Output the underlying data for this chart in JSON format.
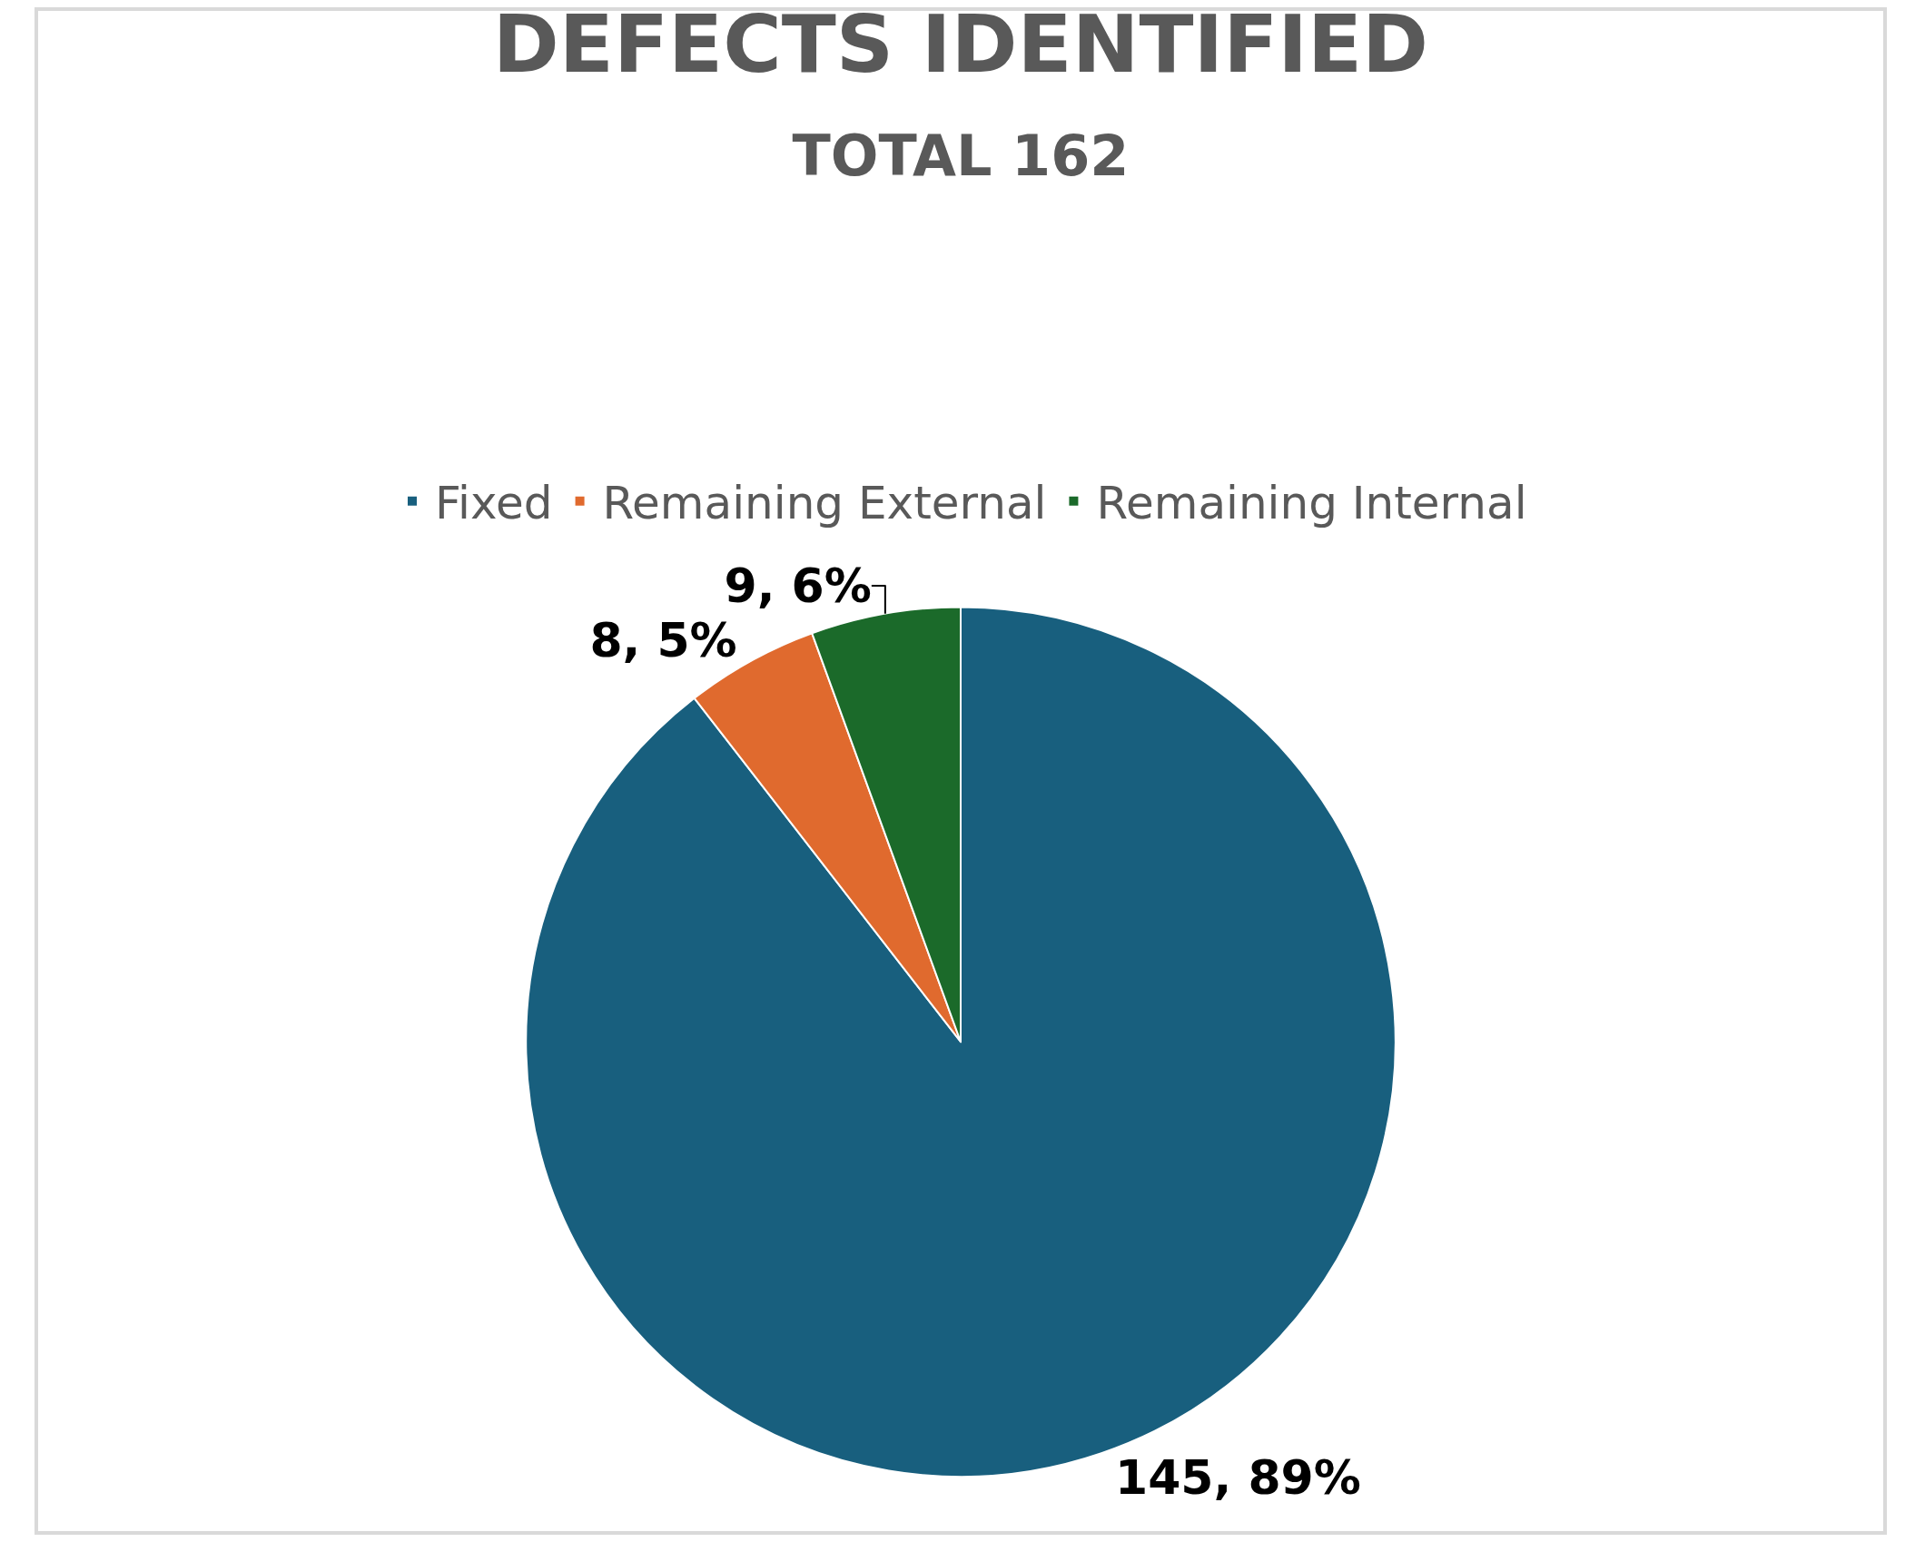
{
  "chart_data": {
    "type": "pie",
    "title": "DEFECTS IDENTIFIED",
    "subtitle": "TOTAL 162",
    "categories": [
      "Fixed",
      "Remaining External",
      "Remaining Internal"
    ],
    "values": [
      145,
      8,
      9
    ],
    "colors": [
      "#185f7e",
      "#e06a2e",
      "#1b6a2a"
    ],
    "value_labels": [
      "145, 89%",
      "8, 5%",
      "9, 6%"
    ],
    "legend": "top"
  }
}
